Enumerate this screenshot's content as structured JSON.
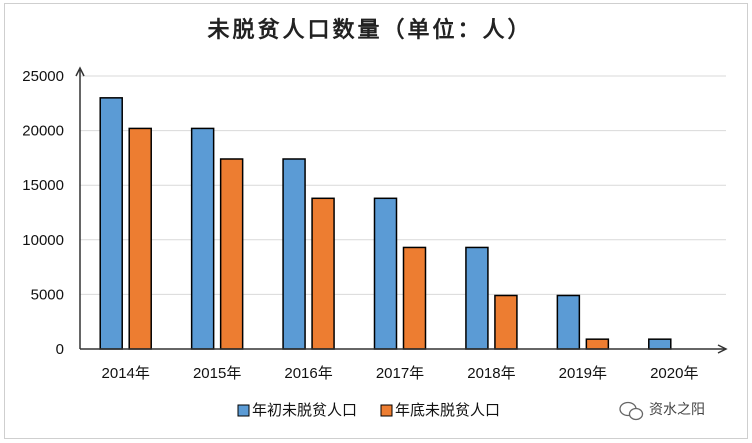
{
  "chart_data": {
    "type": "bar",
    "title": "未脱贫人口数量（单位：人）",
    "categories": [
      "2014年",
      "2015年",
      "2016年",
      "2017年",
      "2018年",
      "2019年",
      "2020年"
    ],
    "series": [
      {
        "name": "年初未脱贫人口",
        "color": "#5b9bd5",
        "values": [
          23000,
          20200,
          17400,
          13800,
          9300,
          4900,
          900
        ]
      },
      {
        "name": "年底未脱贫人口",
        "color": "#ed7d31",
        "values": [
          20200,
          17400,
          13800,
          9300,
          4900,
          900,
          0
        ]
      }
    ],
    "yticks": [
      0,
      5000,
      10000,
      15000,
      20000,
      25000
    ],
    "ylim": [
      0,
      25000
    ],
    "grid": true,
    "legend_position": "bottom"
  },
  "watermark": {
    "text": "资水之阳",
    "icon": "wechat-icon"
  }
}
